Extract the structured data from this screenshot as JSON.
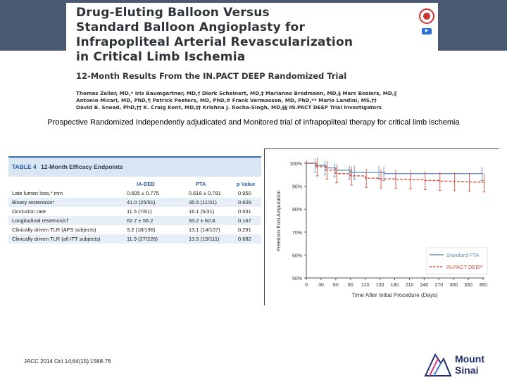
{
  "article": {
    "title_lines": [
      "Drug-Eluting Balloon Versus",
      "Standard Balloon Angioplasty for",
      "Infrapopliteal Arterial Revascularization",
      "in Critical Limb Ischemia"
    ],
    "subtitle": "12-Month Results From the IN.PACT DEEP Randomized Trial",
    "author_lines": [
      "Thomas Zeller, MD,* Iris Baumgartner, MD,† Dierk Scheinert, MD,‡ Marianne Brodmann, MD,§ Marc Bosiers, MD,‖",
      "Antonio Micari, MD, PhD,¶ Patrick Peeters, MD, PhD,# Frank Vermassen, MD, PhD,** Mario Landini, MS,††",
      "David B. Snead, PhD,†† K. Craig Kent, MD,‡‡ Krishna J. Rocha-Singh, MD,§§ IN.PACT DEEP Trial Investigators"
    ]
  },
  "caption": "Prospective Randomized Independently adjudicated and Monitored trial of infrapopliteal therapy for critical limb ischemia",
  "table": {
    "label": "TABLE 4",
    "caption": "12-Month Efficacy Endpoints",
    "columns": [
      "IA-DEB",
      "PTA",
      "p Value"
    ],
    "rows": [
      {
        "name": "Late lumen loss,* mm",
        "deb": "0.605 ± 0.775",
        "pta": "0.616 ± 0.781",
        "p": "0.950"
      },
      {
        "name": "Binary restenosis*",
        "deb": "41.0 (25/61)",
        "pta": "35.5 (11/31)",
        "p": "0.609"
      },
      {
        "name": "Occlusion rate",
        "deb": "11.5 (7/61)",
        "pta": "16.1 (5/31)",
        "p": "0.531"
      },
      {
        "name": "Longitudinal restenosis†",
        "deb": "62.7 ± 56.2",
        "pta": "93.2 ± 60.8",
        "p": "0.167"
      },
      {
        "name": "Clinically driven TLR (AFS subjects)",
        "deb": "9.2 (18/196)",
        "pta": "13.1 (14/107)",
        "p": "0.291"
      },
      {
        "name": "Clinically driven TLR (all ITT subjects)",
        "deb": "11.9 (27/226)",
        "pta": "13.5 (15/111)",
        "p": "0.682"
      }
    ]
  },
  "chart_data": {
    "type": "line",
    "xlabel": "Time After Initial Procedure (Days)",
    "ylabel": "Freedom from Amputation",
    "xlim": [
      0,
      360
    ],
    "ylim": [
      50,
      100
    ],
    "x_ticks": [
      0,
      30,
      60,
      90,
      120,
      150,
      180,
      210,
      240,
      270,
      300,
      330,
      360
    ],
    "y_ticks": [
      50,
      60,
      70,
      80,
      90,
      100
    ],
    "y_tick_labels": [
      "50%",
      "60%",
      "70%",
      "80%",
      "90%",
      "100%"
    ],
    "legend_position": "bottom-right",
    "series": [
      {
        "name": "Standard PTA",
        "style": "solid",
        "color": "#6f8fb8",
        "x": [
          0,
          20,
          40,
          60,
          90,
          100,
          150,
          160,
          360
        ],
        "y": [
          100,
          99,
          98,
          97,
          96,
          96,
          96,
          95.5,
          95.5
        ]
      },
      {
        "name": "IN.PACT DEEP",
        "style": "dashed",
        "color": "#d95040",
        "x": [
          0,
          20,
          40,
          60,
          90,
          120,
          150,
          180,
          210,
          240,
          270,
          300,
          330,
          360
        ],
        "y": [
          100,
          98.5,
          97,
          95.5,
          94.5,
          93.5,
          93.2,
          93,
          92.8,
          92.5,
          92.2,
          92,
          91.8,
          91.5
        ]
      }
    ]
  },
  "footer": "JACC 2014 Oct 14;64(15):1568-76",
  "logo": {
    "line1": "Mount",
    "line2": "Sinai"
  },
  "colors": {
    "header_bar": "#4a5a72",
    "table_accent": "#2a5aa3",
    "table_header_bg": "#d9e7f4",
    "row_alt_bg": "#e6eef7",
    "logo_mark": "#1f2e6e",
    "logo_accent": "#e0388a"
  }
}
